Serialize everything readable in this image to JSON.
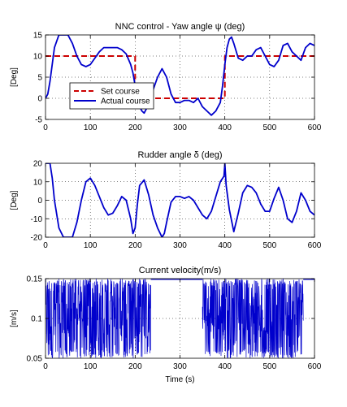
{
  "chart_data": [
    {
      "type": "line",
      "title": "NNC control - Yaw angle ψ (deg)",
      "xlabel": "",
      "ylabel": "[Deg]",
      "xlim": [
        0,
        600
      ],
      "ylim": [
        -5,
        15
      ],
      "xticks": [
        0,
        100,
        200,
        300,
        400,
        500,
        600
      ],
      "yticks": [
        -5,
        0,
        5,
        10,
        15
      ],
      "grid": true,
      "legend": {
        "placement": "lower-left",
        "entries": [
          "Set course",
          "Actual course"
        ]
      },
      "series": [
        {
          "name": "Set course",
          "color": "#cc0000",
          "style": "dashed",
          "x": [
            0,
            200,
            200,
            400,
            400,
            600
          ],
          "y": [
            10,
            10,
            0,
            0,
            10,
            10
          ]
        },
        {
          "name": "Actual course",
          "color": "#0000cc",
          "style": "solid",
          "x": [
            0,
            5,
            10,
            20,
            30,
            40,
            50,
            60,
            70,
            80,
            90,
            100,
            110,
            120,
            130,
            140,
            150,
            160,
            170,
            180,
            190,
            195,
            200,
            205,
            210,
            215,
            220,
            225,
            230,
            240,
            250,
            260,
            270,
            280,
            290,
            300,
            310,
            320,
            330,
            340,
            350,
            360,
            370,
            380,
            390,
            395,
            400,
            405,
            410,
            415,
            420,
            430,
            440,
            450,
            460,
            470,
            480,
            490,
            500,
            510,
            520,
            530,
            540,
            550,
            560,
            570,
            580,
            590,
            600
          ],
          "y": [
            0,
            1,
            4,
            12,
            15,
            15,
            15,
            13,
            10,
            8,
            7.5,
            8,
            9.5,
            11,
            12,
            12,
            12,
            12,
            11.5,
            10.5,
            8,
            6,
            3,
            0,
            -2,
            -3,
            -3.5,
            -2.5,
            -1,
            2,
            5,
            7,
            5,
            1,
            -1,
            -1,
            -0.5,
            -0.5,
            -1,
            0,
            -2,
            -3,
            -4,
            -3,
            -1,
            3,
            8,
            12,
            14,
            14.5,
            13,
            9.5,
            9,
            10,
            10,
            11.5,
            12,
            10,
            8,
            7.5,
            9,
            12.5,
            13,
            11,
            10,
            9,
            12,
            13,
            12.5
          ]
        }
      ]
    },
    {
      "type": "line",
      "title": "Rudder angle δ (deg)",
      "xlabel": "",
      "ylabel": "[Deg]",
      "xlim": [
        0,
        600
      ],
      "ylim": [
        -20,
        20
      ],
      "xticks": [
        0,
        100,
        200,
        300,
        400,
        500,
        600
      ],
      "yticks": [
        -20,
        -10,
        0,
        10,
        20
      ],
      "grid": true,
      "series": [
        {
          "name": "",
          "color": "#0000cc",
          "style": "solid",
          "x": [
            0,
            5,
            10,
            15,
            20,
            30,
            40,
            50,
            60,
            70,
            80,
            90,
            100,
            110,
            120,
            130,
            140,
            150,
            160,
            170,
            180,
            190,
            195,
            200,
            205,
            210,
            220,
            230,
            240,
            250,
            260,
            265,
            270,
            280,
            290,
            300,
            310,
            320,
            330,
            340,
            350,
            360,
            370,
            380,
            390,
            398,
            400,
            403,
            410,
            420,
            430,
            440,
            450,
            460,
            470,
            480,
            490,
            500,
            510,
            520,
            530,
            540,
            550,
            560,
            570,
            580,
            590,
            600
          ],
          "y": [
            20,
            20,
            20,
            12,
            0,
            -15,
            -20,
            -20,
            -20,
            -12,
            0,
            10,
            12,
            8,
            2,
            -4,
            -8,
            -7,
            -3,
            2,
            0,
            -10,
            -18,
            -15,
            -2,
            8,
            11,
            3,
            -8,
            -15,
            -20,
            -18,
            -12,
            -1,
            2,
            2,
            1,
            2,
            0,
            -4,
            -8,
            -10,
            -6,
            2,
            10,
            13,
            20,
            8,
            -5,
            -17,
            -7,
            4,
            8,
            7,
            4,
            -2,
            -6,
            -6,
            1,
            7,
            0,
            -10,
            -12,
            -6,
            4,
            0,
            -6,
            -8
          ]
        }
      ]
    },
    {
      "type": "line",
      "title": "Current velocity(m/s)",
      "xlabel": "Time (s)",
      "ylabel": "[m/s]",
      "xlim": [
        0,
        600
      ],
      "ylim": [
        0.05,
        0.15
      ],
      "xticks": [
        0,
        100,
        200,
        300,
        400,
        500,
        600
      ],
      "yticks": [
        0.05,
        0.1,
        0.15
      ],
      "ytick_labels": [
        "0.05",
        "0.1",
        "0.15"
      ],
      "grid": true,
      "noise_segments": [
        [
          0,
          235
        ],
        [
          350,
          575
        ]
      ],
      "baseline_segments": [
        [
          235,
          350
        ],
        [
          575,
          600
        ]
      ],
      "baseline_value": 0.15,
      "series": [
        {
          "name": "",
          "color": "#0000cc",
          "style": "solid",
          "range": [
            0.05,
            0.15
          ]
        }
      ]
    }
  ]
}
